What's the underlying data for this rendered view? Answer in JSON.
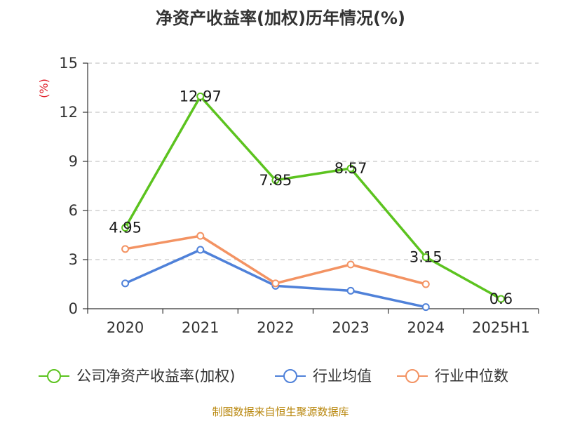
{
  "chart_data": {
    "type": "line",
    "title": "净资产收益率(加权)历年情况(%)",
    "unit_label": "(%)",
    "categories": [
      "2020",
      "2021",
      "2022",
      "2023",
      "2024",
      "2025H1"
    ],
    "ylim": [
      0,
      15
    ],
    "yticks": [
      0,
      3,
      6,
      9,
      12,
      15
    ],
    "grid": true,
    "legend_position": "bottom",
    "series": [
      {
        "name": "公司净资产收益率(加权)",
        "color": "#5cc31f",
        "values": [
          4.95,
          12.97,
          7.85,
          8.57,
          3.15,
          0.6
        ],
        "data_labels": [
          "4.95",
          "12.97",
          "7.85",
          "8.57",
          "3.15",
          "0.6"
        ]
      },
      {
        "name": "行业均值",
        "color": "#4f81d9",
        "values": [
          1.55,
          3.6,
          1.4,
          1.1,
          0.1,
          null
        ]
      },
      {
        "name": "行业中位数",
        "color": "#f39363",
        "values": [
          3.65,
          4.45,
          1.55,
          2.7,
          1.5,
          null
        ]
      }
    ]
  },
  "footer": {
    "source": "制图数据来自恒生聚源数据库"
  }
}
